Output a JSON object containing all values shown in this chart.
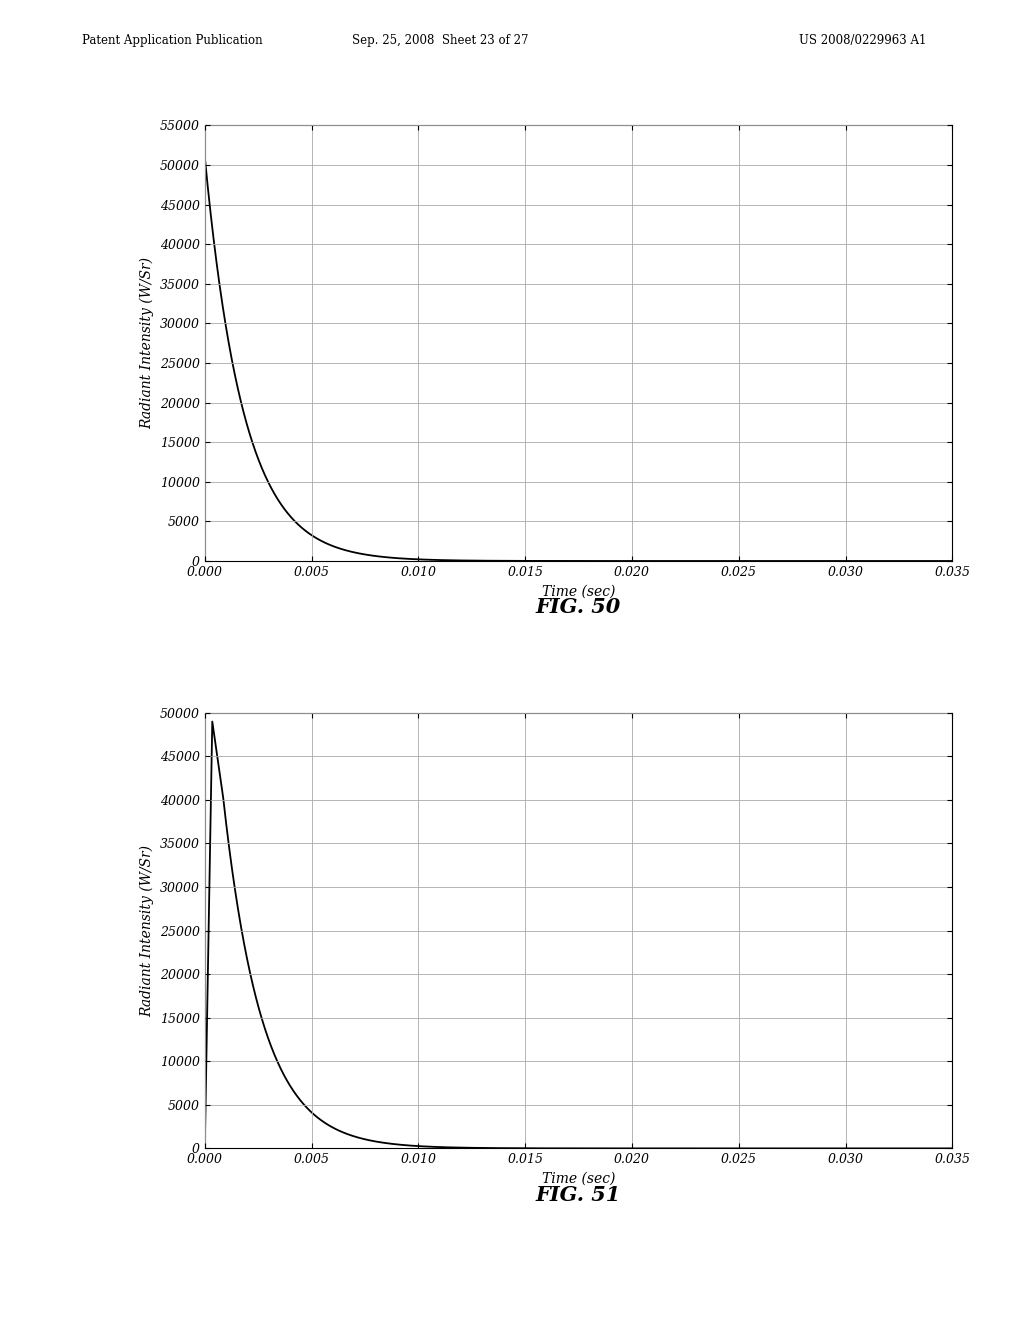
{
  "fig50": {
    "title": "FIG. 50",
    "ylabel": "Radiant Intensity (W/Sr)",
    "xlabel": "Time (sec)",
    "ylim": [
      0,
      55000
    ],
    "xlim": [
      0,
      0.035
    ],
    "yticks": [
      0,
      5000,
      10000,
      15000,
      20000,
      25000,
      30000,
      35000,
      40000,
      45000,
      50000,
      55000
    ],
    "xticks": [
      0.0,
      0.005,
      0.01,
      0.015,
      0.02,
      0.025,
      0.03,
      0.035
    ],
    "peak": 51000,
    "decay_const": 550
  },
  "fig51": {
    "title": "FIG. 51",
    "ylabel": "Radiant Intensity (W/Sr)",
    "xlabel": "Time (sec)",
    "ylim": [
      0,
      50000
    ],
    "xlim": [
      0,
      0.035
    ],
    "yticks": [
      0,
      5000,
      10000,
      15000,
      20000,
      25000,
      30000,
      35000,
      40000,
      45000,
      50000
    ],
    "xticks": [
      0.0,
      0.005,
      0.01,
      0.015,
      0.02,
      0.025,
      0.03,
      0.035
    ],
    "peak": 49000,
    "bump_value": 40500,
    "decay_const": 550
  },
  "background_color": "#ffffff",
  "line_color": "#000000",
  "grid_color": "#aaaaaa",
  "header_left": "Patent Application Publication",
  "header_mid": "Sep. 25, 2008  Sheet 23 of 27",
  "header_right": "US 2008/0229963 A1",
  "axis_label_fontsize": 10,
  "tick_fontsize": 9,
  "header_fontsize": 8.5,
  "fig_label_fontsize": 15
}
